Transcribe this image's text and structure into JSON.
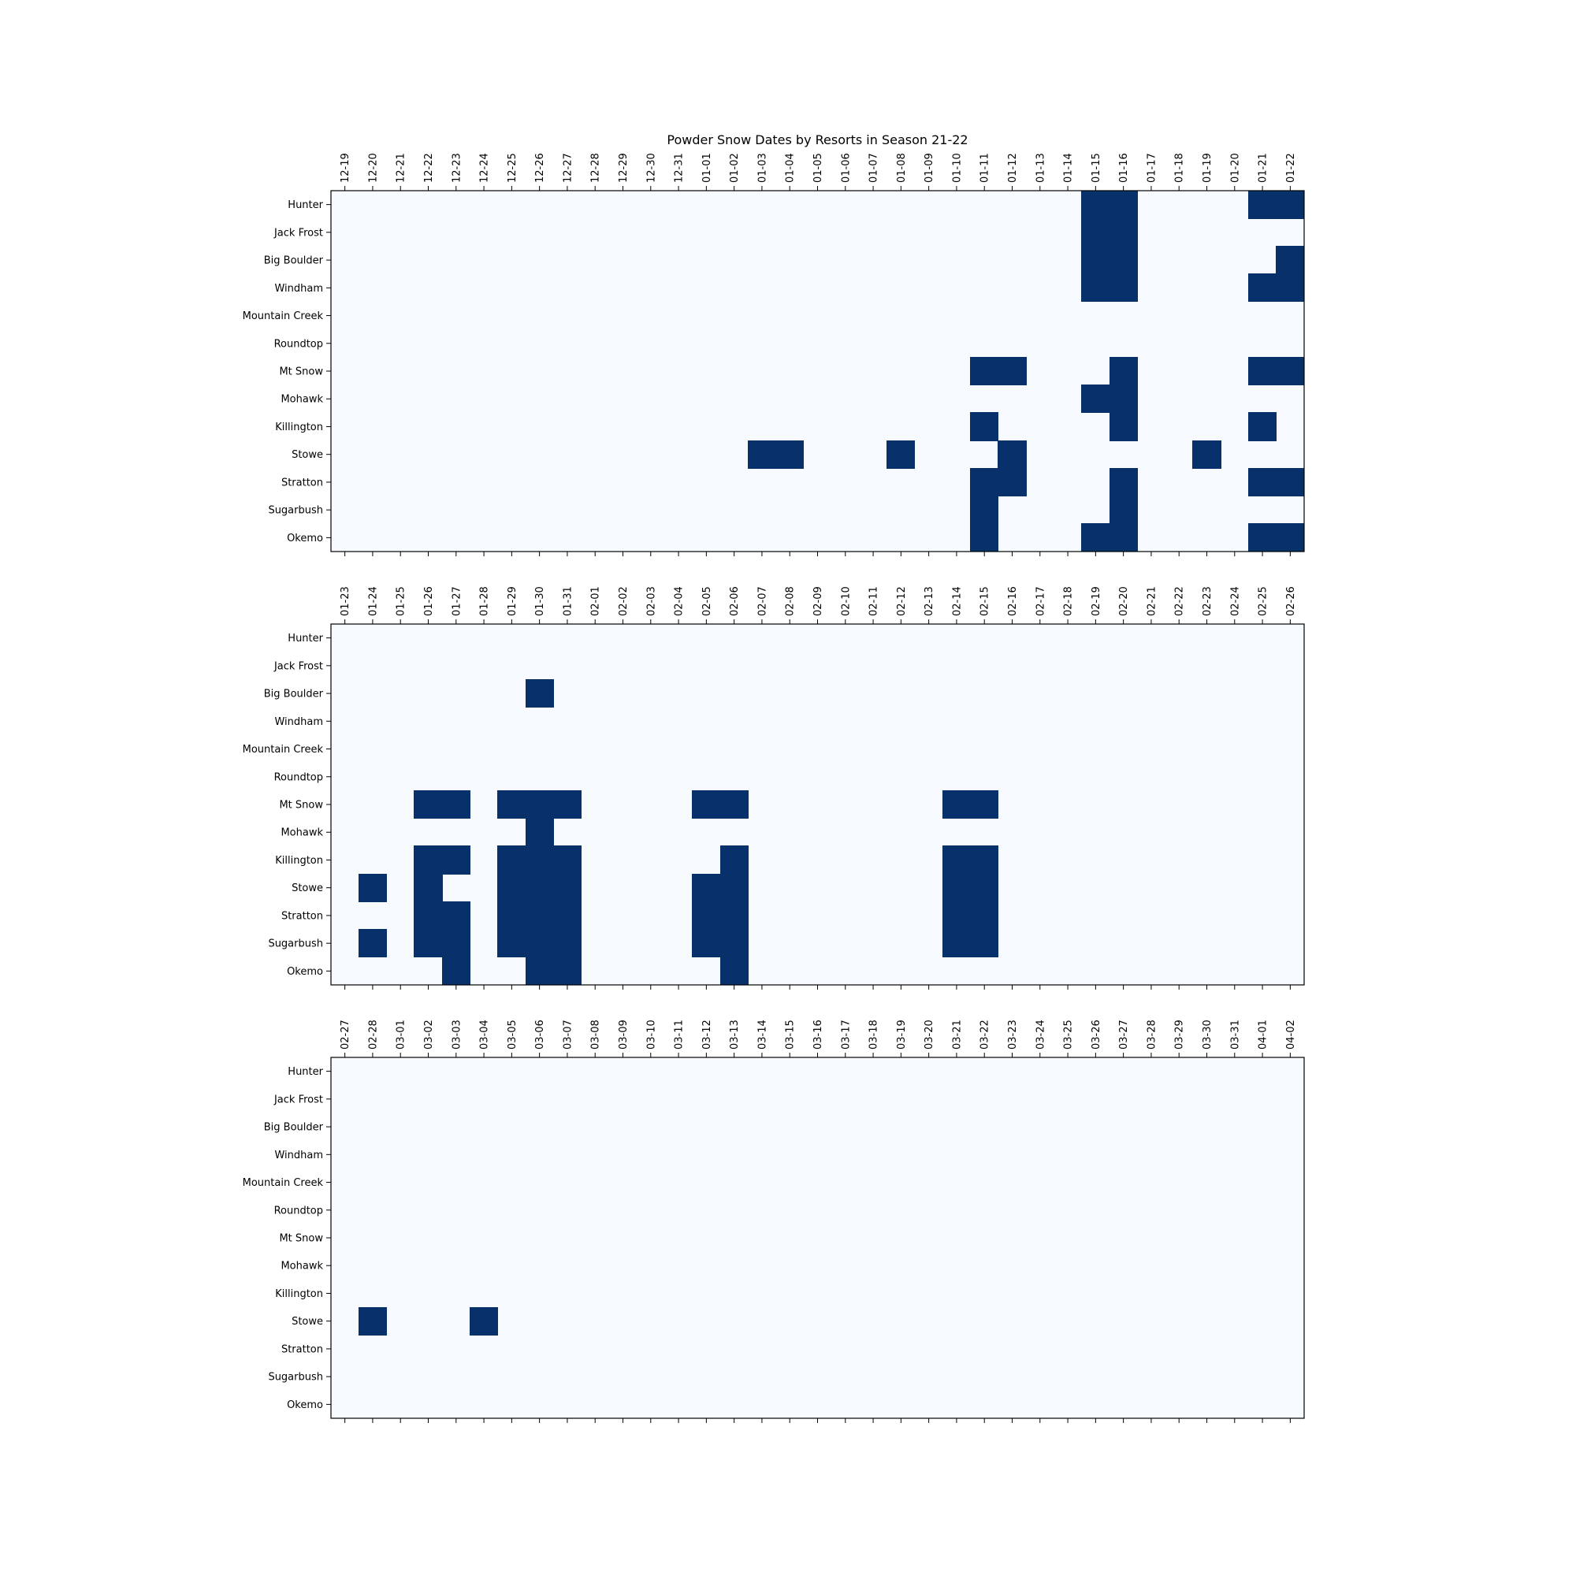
{
  "chart_data": {
    "type": "heatmap",
    "title": "Powder Snow Dates by Resorts in Season 21-22",
    "colors": {
      "empty": "#f7fbff",
      "powder": "#08306b",
      "frame": "#000000"
    },
    "resorts": [
      "Hunter",
      "Jack Frost",
      "Big Boulder",
      "Windham",
      "Mountain Creek",
      "Roundtop",
      "Mt Snow",
      "Mohawk",
      "Killington",
      "Stowe",
      "Stratton",
      "Sugarbush",
      "Okemo"
    ],
    "panels": [
      {
        "dates": [
          "12-19",
          "12-20",
          "12-21",
          "12-22",
          "12-23",
          "12-24",
          "12-25",
          "12-26",
          "12-27",
          "12-28",
          "12-29",
          "12-30",
          "12-31",
          "01-01",
          "01-02",
          "01-03",
          "01-04",
          "01-05",
          "01-06",
          "01-07",
          "01-08",
          "01-09",
          "01-10",
          "01-11",
          "01-12",
          "01-13",
          "01-14",
          "01-15",
          "01-16",
          "01-17",
          "01-18",
          "01-19",
          "01-20",
          "01-21",
          "01-22"
        ],
        "powder_days": {
          "Hunter": [
            "01-15",
            "01-16",
            "01-21",
            "01-22"
          ],
          "Jack Frost": [
            "01-15",
            "01-16"
          ],
          "Big Boulder": [
            "01-15",
            "01-16",
            "01-22"
          ],
          "Windham": [
            "01-15",
            "01-16",
            "01-21",
            "01-22"
          ],
          "Mountain Creek": [],
          "Roundtop": [],
          "Mt Snow": [
            "01-11",
            "01-12",
            "01-16",
            "01-21",
            "01-22"
          ],
          "Mohawk": [
            "01-15",
            "01-16"
          ],
          "Killington": [
            "01-11",
            "01-16",
            "01-21"
          ],
          "Stowe": [
            "01-03",
            "01-04",
            "01-08",
            "01-12",
            "01-19"
          ],
          "Stratton": [
            "01-11",
            "01-12",
            "01-16",
            "01-21",
            "01-22"
          ],
          "Sugarbush": [
            "01-11",
            "01-16"
          ],
          "Okemo": [
            "01-11",
            "01-15",
            "01-16",
            "01-21",
            "01-22"
          ]
        }
      },
      {
        "dates": [
          "01-23",
          "01-24",
          "01-25",
          "01-26",
          "01-27",
          "01-28",
          "01-29",
          "01-30",
          "01-31",
          "02-01",
          "02-02",
          "02-03",
          "02-04",
          "02-05",
          "02-06",
          "02-07",
          "02-08",
          "02-09",
          "02-10",
          "02-11",
          "02-12",
          "02-13",
          "02-14",
          "02-15",
          "02-16",
          "02-17",
          "02-18",
          "02-19",
          "02-20",
          "02-21",
          "02-22",
          "02-23",
          "02-24",
          "02-25",
          "02-26"
        ],
        "powder_days": {
          "Hunter": [],
          "Jack Frost": [],
          "Big Boulder": [
            "01-30"
          ],
          "Windham": [],
          "Mountain Creek": [],
          "Roundtop": [],
          "Mt Snow": [
            "01-26",
            "01-27",
            "01-29",
            "01-30",
            "01-31",
            "02-05",
            "02-06",
            "02-14",
            "02-15"
          ],
          "Mohawk": [
            "01-30"
          ],
          "Killington": [
            "01-26",
            "01-27",
            "01-29",
            "01-30",
            "01-31",
            "02-06",
            "02-14",
            "02-15"
          ],
          "Stowe": [
            "01-24",
            "01-26",
            "01-29",
            "01-30",
            "01-31",
            "02-05",
            "02-06",
            "02-14",
            "02-15"
          ],
          "Stratton": [
            "01-26",
            "01-27",
            "01-29",
            "01-30",
            "01-31",
            "02-05",
            "02-06",
            "02-14",
            "02-15"
          ],
          "Sugarbush": [
            "01-24",
            "01-26",
            "01-27",
            "01-29",
            "01-30",
            "01-31",
            "02-05",
            "02-06",
            "02-14",
            "02-15"
          ],
          "Okemo": [
            "01-27",
            "01-30",
            "01-31",
            "02-06"
          ]
        }
      },
      {
        "dates": [
          "02-27",
          "02-28",
          "03-01",
          "03-02",
          "03-03",
          "03-04",
          "03-05",
          "03-06",
          "03-07",
          "03-08",
          "03-09",
          "03-10",
          "03-11",
          "03-12",
          "03-13",
          "03-14",
          "03-15",
          "03-16",
          "03-17",
          "03-18",
          "03-19",
          "03-20",
          "03-21",
          "03-22",
          "03-23",
          "03-24",
          "03-25",
          "03-26",
          "03-27",
          "03-28",
          "03-29",
          "03-30",
          "03-31",
          "04-01",
          "04-02"
        ],
        "powder_days": {
          "Hunter": [],
          "Jack Frost": [],
          "Big Boulder": [],
          "Windham": [],
          "Mountain Creek": [],
          "Roundtop": [],
          "Mt Snow": [],
          "Mohawk": [],
          "Killington": [],
          "Stowe": [
            "02-28",
            "03-04"
          ],
          "Stratton": [],
          "Sugarbush": [],
          "Okemo": []
        }
      }
    ]
  }
}
